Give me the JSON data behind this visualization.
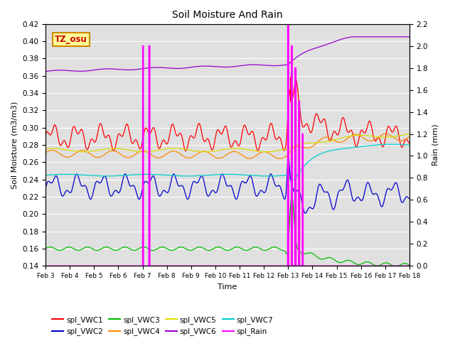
{
  "title": "Soil Moisture And Rain",
  "xlabel": "Time",
  "ylabel_left": "Soil Moisture (m3/m3)",
  "ylabel_right": "Rain (mm)",
  "annotation": "TZ_osu",
  "ylim_left": [
    0.14,
    0.42
  ],
  "ylim_right": [
    0.0,
    2.2
  ],
  "bg_color": "#e0e0e0",
  "fig_color": "#ffffff",
  "series_colors": {
    "VWC1": "#ff0000",
    "VWC2": "#0000cc",
    "VWC3": "#00bb00",
    "VWC4": "#ff8800",
    "VWC5": "#dddd00",
    "VWC6": "#9900cc",
    "VWC7": "#00cccc",
    "Rain": "#ff00ff"
  },
  "xtick_labels": [
    "Feb 3",
    "Feb 4",
    "Feb 5",
    "Feb 6",
    "Feb 7",
    "Feb 8",
    "Feb 9",
    "Feb 10",
    "Feb 11",
    "Feb 12",
    "Feb 13",
    "Feb 14",
    "Feb 15",
    "Feb 16",
    "Feb 17",
    "Feb 18"
  ]
}
